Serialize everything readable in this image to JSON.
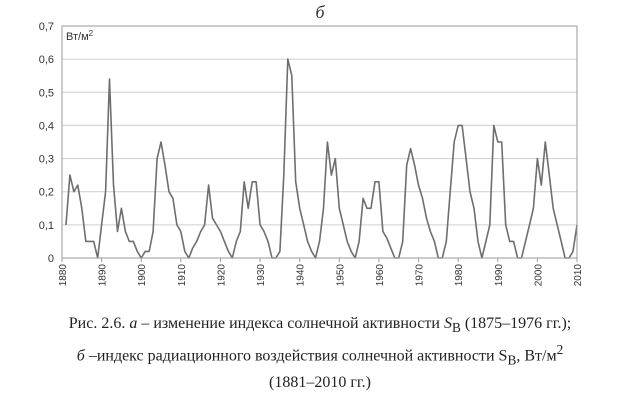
{
  "panel_label": "б",
  "caption": {
    "line1_prefix": "Рис. 2.6.",
    "line1_a": "а",
    "line1_mid": "– изменение индекса солнечной активности",
    "line1_S": "S",
    "line1_sub": "B",
    "line1_end": "(1875–1976 гг.);",
    "line2_b": "б",
    "line2_text": "–индекс радиационного воздействия солнечной активности S",
    "line2_sub": "B",
    "line2_unit": ", Вт/м",
    "line2_sup": "2",
    "line3": "(1881–2010 гг.)"
  },
  "chart_data": {
    "type": "line",
    "title": "",
    "ylabel": "Вт/м",
    "ylabel_sup": "2",
    "xlim": [
      1880,
      2010
    ],
    "ylim": [
      0,
      0.7
    ],
    "grid": true,
    "x_ticks": [
      1880,
      1890,
      1900,
      1910,
      1920,
      1930,
      1940,
      1950,
      1960,
      1970,
      1980,
      1990,
      2000,
      2010
    ],
    "y_ticks": [
      0,
      0.1,
      0.2,
      0.3,
      0.4,
      0.5,
      0.6,
      0.7
    ],
    "y_tick_labels": [
      "0",
      "0,1",
      "0,2",
      "0,3",
      "0,4",
      "0,5",
      "0,6",
      "0,7"
    ],
    "line_color": "#6e6e6e",
    "series": [
      {
        "x": [
          1881,
          1882,
          1883,
          1884,
          1885,
          1886,
          1887,
          1888,
          1889,
          1890,
          1891,
          1892,
          1893,
          1894,
          1895,
          1896,
          1897,
          1898,
          1899,
          1900,
          1901,
          1902,
          1903,
          1904,
          1905,
          1906,
          1907,
          1908,
          1909,
          1910,
          1911,
          1912,
          1913,
          1914,
          1915,
          1916,
          1917,
          1918,
          1919,
          1920,
          1921,
          1922,
          1923,
          1924,
          1925,
          1926,
          1927,
          1928,
          1929,
          1930,
          1931,
          1932,
          1933,
          1934,
          1935,
          1936,
          1937,
          1938,
          1939,
          1940,
          1941,
          1942,
          1943,
          1944,
          1945,
          1946,
          1947,
          1948,
          1949,
          1950,
          1951,
          1952,
          1953,
          1954,
          1955,
          1956,
          1957,
          1958,
          1959,
          1960,
          1961,
          1962,
          1963,
          1964,
          1965,
          1966,
          1967,
          1968,
          1969,
          1970,
          1971,
          1972,
          1973,
          1974,
          1975,
          1976,
          1977,
          1978,
          1979,
          1980,
          1981,
          1982,
          1983,
          1984,
          1985,
          1986,
          1987,
          1988,
          1989,
          1990,
          1991,
          1992,
          1993,
          1994,
          1995,
          1996,
          1997,
          1998,
          1999,
          2000,
          2001,
          2002,
          2003,
          2004,
          2005,
          2006,
          2007,
          2008,
          2009,
          2010
        ],
        "values": [
          0.1,
          0.25,
          0.2,
          0.22,
          0.15,
          0.05,
          0.05,
          0.05,
          0.0,
          0.1,
          0.2,
          0.54,
          0.22,
          0.08,
          0.15,
          0.08,
          0.05,
          0.05,
          0.02,
          0.0,
          0.02,
          0.02,
          0.08,
          0.3,
          0.35,
          0.28,
          0.2,
          0.18,
          0.1,
          0.08,
          0.02,
          0.0,
          0.03,
          0.05,
          0.08,
          0.1,
          0.22,
          0.12,
          0.1,
          0.08,
          0.05,
          0.02,
          0.0,
          0.05,
          0.08,
          0.23,
          0.15,
          0.23,
          0.23,
          0.1,
          0.08,
          0.05,
          0.0,
          0.0,
          0.02,
          0.25,
          0.6,
          0.55,
          0.23,
          0.15,
          0.1,
          0.05,
          0.02,
          0.0,
          0.05,
          0.15,
          0.35,
          0.25,
          0.3,
          0.15,
          0.1,
          0.05,
          0.02,
          0.0,
          0.05,
          0.18,
          0.15,
          0.15,
          0.23,
          0.23,
          0.08,
          0.06,
          0.03,
          0.0,
          0.0,
          0.05,
          0.28,
          0.33,
          0.28,
          0.22,
          0.18,
          0.12,
          0.08,
          0.05,
          0.0,
          0.0,
          0.05,
          0.2,
          0.35,
          0.4,
          0.4,
          0.3,
          0.2,
          0.15,
          0.05,
          0.0,
          0.05,
          0.1,
          0.4,
          0.35,
          0.35,
          0.1,
          0.05,
          0.05,
          0.0,
          0.0,
          0.05,
          0.1,
          0.15,
          0.3,
          0.22,
          0.35,
          0.25,
          0.15,
          0.1,
          0.05,
          0.0,
          0.0,
          0.02,
          0.1
        ]
      }
    ]
  }
}
